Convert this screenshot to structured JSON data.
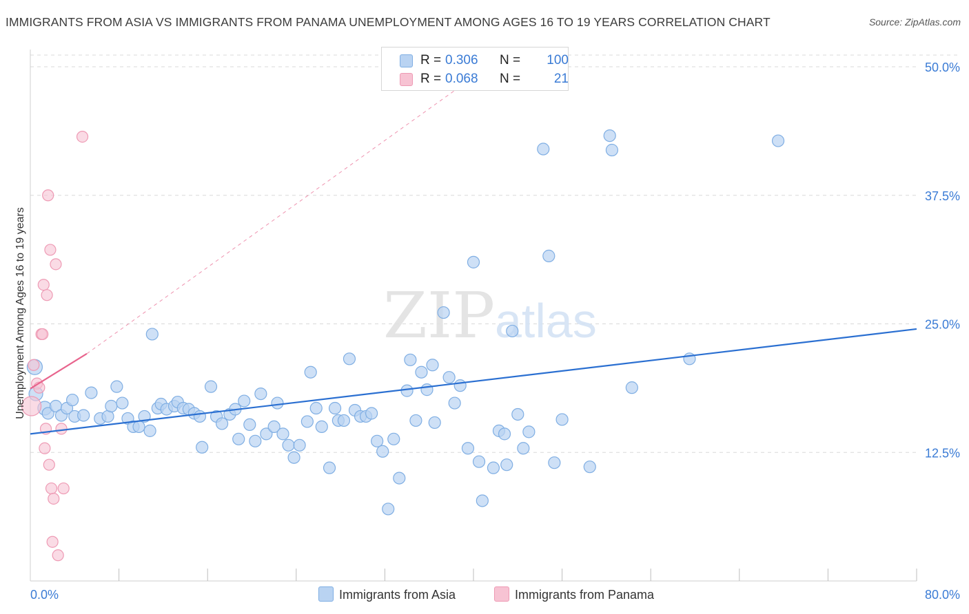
{
  "title": "IMMIGRANTS FROM ASIA VS IMMIGRANTS FROM PANAMA UNEMPLOYMENT AMONG AGES 16 TO 19 YEARS CORRELATION CHART",
  "source": "Source: ZipAtlas.com",
  "watermark": {
    "part1": "ZIP",
    "part2": "atlas"
  },
  "legend": {
    "rows": [
      {
        "r_label": "R =",
        "r_value": "0.306",
        "n_label": "N =",
        "n_value": "100"
      },
      {
        "r_label": "R =",
        "r_value": "0.068",
        "n_label": "N =",
        "n_value": "21"
      }
    ]
  },
  "bottom_legend": [
    "Immigrants from Asia",
    "Immigrants from Panama"
  ],
  "colors": {
    "asia_fill": "#b9d3f2",
    "asia_stroke": "#7faee3",
    "asia_line": "#2a6fd1",
    "panama_fill": "#f7c3d3",
    "panama_stroke": "#ee9ab4",
    "panama_line": "#e8648d",
    "tick_label": "#3a7bd5",
    "grid": "#d9d9d9"
  },
  "chart_data": {
    "type": "scatter",
    "title": "IMMIGRANTS FROM ASIA VS IMMIGRANTS FROM PANAMA UNEMPLOYMENT AMONG AGES 16 TO 19 YEARS CORRELATION CHART",
    "xlabel": "",
    "ylabel": "Unemployment Among Ages 16 to 19 years",
    "xlim": [
      0,
      80
    ],
    "ylim": [
      0,
      52
    ],
    "x_tick_labels": [
      {
        "value": 0,
        "label": "0.0%"
      },
      {
        "value": 80,
        "label": "80.0%"
      }
    ],
    "x_minor_ticks": [
      8,
      16,
      24,
      32,
      40,
      48,
      56,
      64,
      72,
      80
    ],
    "y_ticks": [
      {
        "value": 12.5,
        "label": "12.5%"
      },
      {
        "value": 25,
        "label": "25.0%"
      },
      {
        "value": 37.5,
        "label": "37.5%"
      },
      {
        "value": 50,
        "label": "50.0%"
      }
    ],
    "series": [
      {
        "name": "Immigrants from Asia",
        "R": 0.306,
        "N": 100,
        "trend": {
          "x": [
            0,
            80
          ],
          "y": [
            14.3,
            24.5
          ],
          "dashed_extension": false
        },
        "points": [
          [
            0.4,
            20.8
          ],
          [
            0.5,
            18.2
          ],
          [
            1.3,
            16.8
          ],
          [
            1.6,
            16.3
          ],
          [
            2.3,
            17.0
          ],
          [
            2.8,
            16.1
          ],
          [
            3.3,
            16.8
          ],
          [
            4.0,
            16.0
          ],
          [
            3.8,
            17.6
          ],
          [
            4.8,
            16.1
          ],
          [
            5.5,
            18.3
          ],
          [
            6.3,
            15.8
          ],
          [
            7.0,
            16.0
          ],
          [
            7.3,
            17.0
          ],
          [
            7.8,
            18.9
          ],
          [
            8.3,
            17.3
          ],
          [
            8.8,
            15.8
          ],
          [
            9.3,
            15.0
          ],
          [
            9.8,
            15.0
          ],
          [
            10.3,
            16.0
          ],
          [
            10.8,
            14.6
          ],
          [
            11.0,
            24.0
          ],
          [
            11.5,
            16.8
          ],
          [
            11.8,
            17.2
          ],
          [
            12.3,
            16.7
          ],
          [
            13.0,
            17.0
          ],
          [
            13.3,
            17.4
          ],
          [
            13.8,
            16.8
          ],
          [
            14.3,
            16.7
          ],
          [
            14.8,
            16.3
          ],
          [
            15.3,
            16.0
          ],
          [
            15.5,
            13.0
          ],
          [
            16.3,
            18.9
          ],
          [
            16.8,
            16.0
          ],
          [
            17.3,
            15.3
          ],
          [
            18.0,
            16.2
          ],
          [
            18.5,
            16.7
          ],
          [
            18.8,
            13.8
          ],
          [
            19.3,
            17.5
          ],
          [
            19.8,
            15.2
          ],
          [
            20.3,
            13.6
          ],
          [
            20.8,
            18.2
          ],
          [
            21.3,
            14.3
          ],
          [
            22.0,
            15.0
          ],
          [
            22.3,
            17.3
          ],
          [
            22.8,
            14.3
          ],
          [
            23.3,
            13.2
          ],
          [
            23.8,
            12.0
          ],
          [
            24.3,
            13.2
          ],
          [
            25.0,
            15.5
          ],
          [
            25.3,
            20.3
          ],
          [
            25.8,
            16.8
          ],
          [
            26.3,
            15.0
          ],
          [
            27.0,
            11.0
          ],
          [
            27.5,
            16.8
          ],
          [
            27.8,
            15.6
          ],
          [
            28.3,
            15.6
          ],
          [
            28.8,
            21.6
          ],
          [
            29.3,
            16.6
          ],
          [
            29.8,
            16.0
          ],
          [
            30.3,
            16.0
          ],
          [
            30.8,
            16.3
          ],
          [
            31.3,
            13.6
          ],
          [
            31.8,
            12.6
          ],
          [
            32.3,
            7.0
          ],
          [
            32.8,
            13.8
          ],
          [
            33.3,
            10.0
          ],
          [
            34.0,
            18.5
          ],
          [
            34.3,
            21.5
          ],
          [
            34.8,
            15.6
          ],
          [
            35.3,
            20.3
          ],
          [
            35.8,
            18.6
          ],
          [
            36.3,
            21.0
          ],
          [
            36.5,
            15.4
          ],
          [
            37.3,
            26.1
          ],
          [
            37.8,
            19.8
          ],
          [
            38.3,
            17.3
          ],
          [
            38.8,
            19.0
          ],
          [
            39.5,
            12.9
          ],
          [
            40.0,
            31.0
          ],
          [
            40.5,
            11.6
          ],
          [
            40.8,
            7.8
          ],
          [
            41.8,
            11.0
          ],
          [
            42.3,
            14.6
          ],
          [
            42.8,
            14.3
          ],
          [
            43.0,
            11.3
          ],
          [
            43.5,
            24.3
          ],
          [
            44.0,
            16.2
          ],
          [
            44.5,
            12.9
          ],
          [
            45.0,
            14.5
          ],
          [
            46.3,
            42.0
          ],
          [
            46.8,
            31.6
          ],
          [
            47.3,
            11.5
          ],
          [
            48.0,
            15.7
          ],
          [
            50.5,
            11.1
          ],
          [
            52.3,
            43.3
          ],
          [
            52.5,
            41.9
          ],
          [
            54.3,
            18.8
          ],
          [
            59.5,
            21.6
          ],
          [
            67.5,
            42.8
          ]
        ]
      },
      {
        "name": "Immigrants from Panama",
        "R": 0.068,
        "N": 21,
        "trend": {
          "x": [
            0,
            5.1
          ],
          "y": [
            18.7,
            22.1
          ],
          "dashed_extension_to": [
            40,
            49
          ]
        },
        "points": [
          [
            0.1,
            17.0
          ],
          [
            0.3,
            21.0
          ],
          [
            0.6,
            19.2
          ],
          [
            0.8,
            18.8
          ],
          [
            1.0,
            24.0
          ],
          [
            1.1,
            24.0
          ],
          [
            1.2,
            28.8
          ],
          [
            1.3,
            12.9
          ],
          [
            1.4,
            14.8
          ],
          [
            1.5,
            27.8
          ],
          [
            1.6,
            37.5
          ],
          [
            1.7,
            11.3
          ],
          [
            1.8,
            32.2
          ],
          [
            1.9,
            9.0
          ],
          [
            2.0,
            3.8
          ],
          [
            2.1,
            8.0
          ],
          [
            2.3,
            30.8
          ],
          [
            2.5,
            2.5
          ],
          [
            3.0,
            9.0
          ],
          [
            2.8,
            14.8
          ],
          [
            4.7,
            43.2
          ]
        ]
      }
    ]
  }
}
